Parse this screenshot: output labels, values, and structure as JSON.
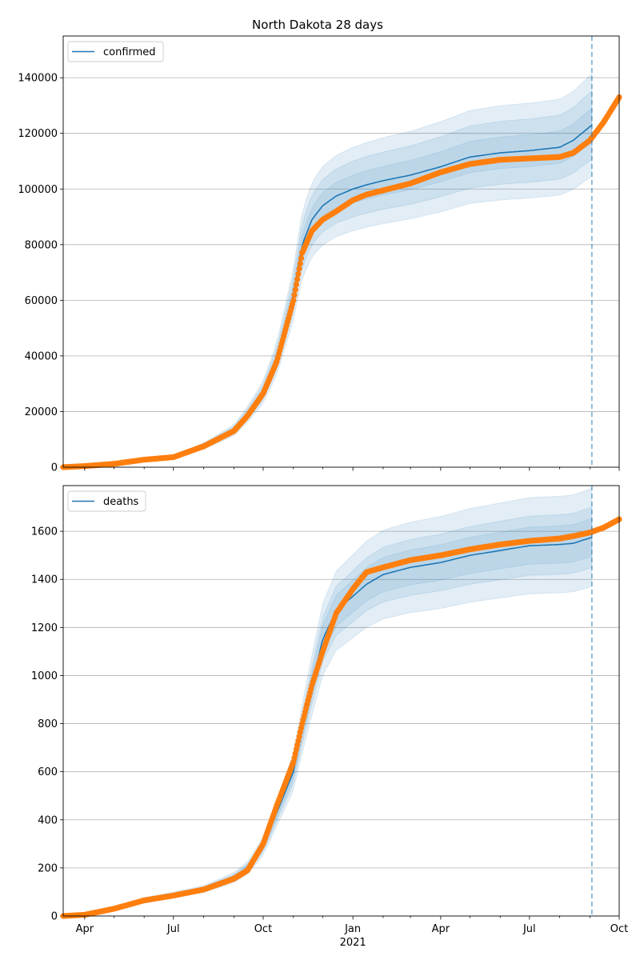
{
  "title": "North Dakota 28 days",
  "chart_data": [
    {
      "type": "line",
      "legend": "confirmed",
      "legend_position": "upper-left",
      "grid": "y",
      "xlim": [
        "2020-03-10",
        "2021-10-01"
      ],
      "ylim": [
        0,
        155000
      ],
      "yticks": [
        0,
        20000,
        40000,
        60000,
        80000,
        100000,
        120000,
        140000
      ],
      "forecast_start": "2021-09-03",
      "series_color": "#1f77b4",
      "points_color": "#ff7f0e",
      "observed": {
        "x": [
          "2020-03-10",
          "2020-04-01",
          "2020-05-01",
          "2020-06-01",
          "2020-07-01",
          "2020-08-01",
          "2020-09-01",
          "2020-09-15",
          "2020-10-01",
          "2020-10-15",
          "2020-11-01",
          "2020-11-10",
          "2020-11-20",
          "2020-12-01",
          "2020-12-15",
          "2021-01-01",
          "2021-01-15",
          "2021-02-01",
          "2021-03-01",
          "2021-04-01",
          "2021-05-01",
          "2021-06-01",
          "2021-07-01",
          "2021-08-01",
          "2021-08-15",
          "2021-09-01",
          "2021-09-15",
          "2021-10-01"
        ],
        "y": [
          0,
          400,
          1200,
          2700,
          3600,
          7500,
          13000,
          18500,
          26500,
          38000,
          60000,
          77000,
          85000,
          89000,
          92000,
          96000,
          98000,
          99500,
          102000,
          106000,
          109000,
          110500,
          111000,
          111500,
          113000,
          117500,
          124000,
          133000
        ]
      },
      "model": {
        "x": [
          "2020-03-10",
          "2020-04-01",
          "2020-05-01",
          "2020-06-01",
          "2020-07-01",
          "2020-08-01",
          "2020-09-01",
          "2020-09-15",
          "2020-10-01",
          "2020-10-15",
          "2020-11-01",
          "2020-11-10",
          "2020-11-20",
          "2020-12-01",
          "2020-12-15",
          "2021-01-01",
          "2021-01-15",
          "2021-02-01",
          "2021-03-01",
          "2021-04-01",
          "2021-05-01",
          "2021-06-01",
          "2021-07-01",
          "2021-08-01",
          "2021-08-15",
          "2021-09-03"
        ],
        "y": [
          0,
          450,
          1250,
          2750,
          3700,
          7600,
          13300,
          19000,
          27000,
          39000,
          62000,
          80000,
          89000,
          94000,
          97500,
          100000,
          101500,
          103000,
          105000,
          108000,
          111500,
          113000,
          113800,
          115000,
          117500,
          123000
        ],
        "band_rel": [
          0.05,
          0.1,
          0.15
        ]
      }
    },
    {
      "type": "line",
      "legend": "deaths",
      "legend_position": "upper-left",
      "grid": "y",
      "xlim": [
        "2020-03-10",
        "2021-10-01"
      ],
      "ylim": [
        0,
        1790
      ],
      "yticks": [
        0,
        200,
        400,
        600,
        800,
        1000,
        1200,
        1400,
        1600
      ],
      "forecast_start": "2021-09-03",
      "series_color": "#1f77b4",
      "points_color": "#ff7f0e",
      "observed": {
        "x": [
          "2020-03-10",
          "2020-04-01",
          "2020-05-01",
          "2020-06-01",
          "2020-07-01",
          "2020-08-01",
          "2020-09-01",
          "2020-09-15",
          "2020-10-01",
          "2020-10-15",
          "2020-11-01",
          "2020-11-10",
          "2020-11-20",
          "2020-12-01",
          "2020-12-15",
          "2021-01-01",
          "2021-01-15",
          "2021-02-01",
          "2021-03-01",
          "2021-04-01",
          "2021-05-01",
          "2021-06-01",
          "2021-07-01",
          "2021-08-01",
          "2021-08-15",
          "2021-09-01",
          "2021-09-15",
          "2021-10-01"
        ],
        "y": [
          0,
          5,
          30,
          65,
          85,
          110,
          155,
          190,
          300,
          460,
          640,
          800,
          960,
          1100,
          1260,
          1360,
          1430,
          1450,
          1480,
          1500,
          1525,
          1545,
          1560,
          1570,
          1580,
          1595,
          1615,
          1650
        ]
      },
      "model": {
        "x": [
          "2020-03-10",
          "2020-04-01",
          "2020-05-01",
          "2020-06-01",
          "2020-07-01",
          "2020-08-01",
          "2020-09-01",
          "2020-09-15",
          "2020-10-01",
          "2020-10-15",
          "2020-11-01",
          "2020-11-10",
          "2020-11-20",
          "2020-12-01",
          "2020-12-15",
          "2021-01-01",
          "2021-01-15",
          "2021-02-01",
          "2021-03-01",
          "2021-04-01",
          "2021-05-01",
          "2021-06-01",
          "2021-07-01",
          "2021-08-01",
          "2021-08-15",
          "2021-09-03"
        ],
        "y": [
          0,
          6,
          32,
          68,
          88,
          112,
          160,
          200,
          290,
          430,
          600,
          780,
          960,
          1150,
          1270,
          1330,
          1380,
          1420,
          1450,
          1470,
          1500,
          1520,
          1540,
          1545,
          1550,
          1575
        ],
        "band_rel": [
          0.05,
          0.08,
          0.13
        ]
      }
    }
  ],
  "x_axis": {
    "tick_labels": [
      {
        "date": "2020-04-01",
        "label": "Apr"
      },
      {
        "date": "2020-07-01",
        "label": "Jul"
      },
      {
        "date": "2020-10-01",
        "label": "Oct"
      },
      {
        "date": "2021-01-01",
        "label": "Jan"
      },
      {
        "date": "2021-04-01",
        "label": "Apr"
      },
      {
        "date": "2021-07-01",
        "label": "Jul"
      },
      {
        "date": "2021-10-01",
        "label": "Oct"
      }
    ],
    "year_label": {
      "date": "2021-01-01",
      "label": "2021"
    }
  }
}
